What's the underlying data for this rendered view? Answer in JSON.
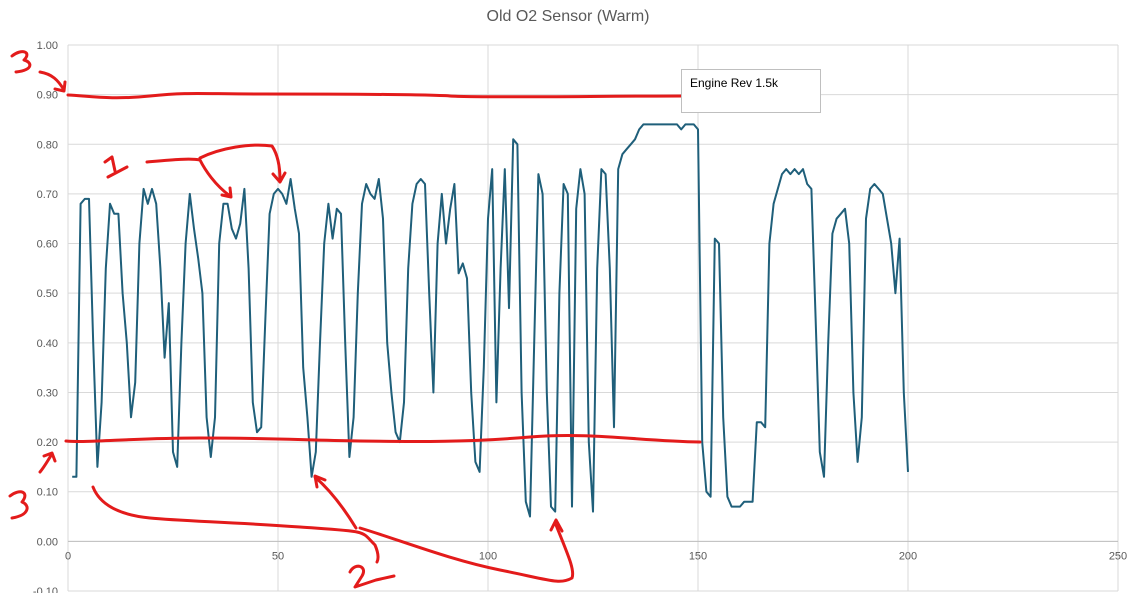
{
  "chart_data": {
    "type": "line",
    "title": "Old O2 Sensor (Warm)",
    "xlabel": "",
    "ylabel": "",
    "xlim": [
      0,
      250
    ],
    "ylim": [
      -0.1,
      1.0
    ],
    "x_ticks": [
      "0",
      "50",
      "100",
      "150",
      "200",
      "250"
    ],
    "y_ticks": [
      "-0.10",
      "0.00",
      "0.10",
      "0.20",
      "0.30",
      "0.40",
      "0.50",
      "0.60",
      "0.70",
      "0.80",
      "0.90",
      "1.00"
    ],
    "grid": true,
    "legend": "none",
    "series": [
      {
        "color": "#1f5f7a",
        "points": [
          [
            1,
            0.13
          ],
          [
            2,
            0.13
          ],
          [
            3,
            0.68
          ],
          [
            4,
            0.69
          ],
          [
            5,
            0.69
          ],
          [
            6,
            0.4
          ],
          [
            7,
            0.15
          ],
          [
            8,
            0.28
          ],
          [
            9,
            0.55
          ],
          [
            10,
            0.68
          ],
          [
            11,
            0.66
          ],
          [
            12,
            0.66
          ],
          [
            13,
            0.5
          ],
          [
            14,
            0.4
          ],
          [
            15,
            0.25
          ],
          [
            16,
            0.32
          ],
          [
            17,
            0.6
          ],
          [
            18,
            0.71
          ],
          [
            19,
            0.68
          ],
          [
            20,
            0.71
          ],
          [
            21,
            0.68
          ],
          [
            22,
            0.55
          ],
          [
            23,
            0.37
          ],
          [
            24,
            0.48
          ],
          [
            25,
            0.18
          ],
          [
            26,
            0.15
          ],
          [
            27,
            0.4
          ],
          [
            28,
            0.6
          ],
          [
            29,
            0.7
          ],
          [
            30,
            0.63
          ],
          [
            31,
            0.57
          ],
          [
            32,
            0.5
          ],
          [
            33,
            0.25
          ],
          [
            34,
            0.17
          ],
          [
            35,
            0.25
          ],
          [
            36,
            0.6
          ],
          [
            37,
            0.68
          ],
          [
            38,
            0.68
          ],
          [
            39,
            0.63
          ],
          [
            40,
            0.61
          ],
          [
            41,
            0.64
          ],
          [
            42,
            0.71
          ],
          [
            43,
            0.55
          ],
          [
            44,
            0.28
          ],
          [
            45,
            0.22
          ],
          [
            46,
            0.23
          ],
          [
            47,
            0.45
          ],
          [
            48,
            0.66
          ],
          [
            49,
            0.7
          ],
          [
            50,
            0.71
          ],
          [
            51,
            0.7
          ],
          [
            52,
            0.68
          ],
          [
            53,
            0.73
          ],
          [
            54,
            0.67
          ],
          [
            55,
            0.62
          ],
          [
            56,
            0.35
          ],
          [
            57,
            0.25
          ],
          [
            58,
            0.13
          ],
          [
            59,
            0.18
          ],
          [
            60,
            0.4
          ],
          [
            61,
            0.6
          ],
          [
            62,
            0.68
          ],
          [
            63,
            0.61
          ],
          [
            64,
            0.67
          ],
          [
            65,
            0.66
          ],
          [
            66,
            0.4
          ],
          [
            67,
            0.17
          ],
          [
            68,
            0.25
          ],
          [
            69,
            0.5
          ],
          [
            70,
            0.68
          ],
          [
            71,
            0.72
          ],
          [
            72,
            0.7
          ],
          [
            73,
            0.69
          ],
          [
            74,
            0.73
          ],
          [
            75,
            0.65
          ],
          [
            76,
            0.4
          ],
          [
            77,
            0.3
          ],
          [
            78,
            0.22
          ],
          [
            79,
            0.2
          ],
          [
            80,
            0.28
          ],
          [
            81,
            0.55
          ],
          [
            82,
            0.68
          ],
          [
            83,
            0.72
          ],
          [
            84,
            0.73
          ],
          [
            85,
            0.72
          ],
          [
            86,
            0.5
          ],
          [
            87,
            0.3
          ],
          [
            88,
            0.6
          ],
          [
            89,
            0.7
          ],
          [
            90,
            0.6
          ],
          [
            91,
            0.67
          ],
          [
            92,
            0.72
          ],
          [
            93,
            0.54
          ],
          [
            94,
            0.56
          ],
          [
            95,
            0.53
          ],
          [
            96,
            0.3
          ],
          [
            97,
            0.16
          ],
          [
            98,
            0.14
          ],
          [
            99,
            0.35
          ],
          [
            100,
            0.65
          ],
          [
            101,
            0.75
          ],
          [
            102,
            0.28
          ],
          [
            103,
            0.55
          ],
          [
            104,
            0.75
          ],
          [
            105,
            0.47
          ],
          [
            106,
            0.81
          ],
          [
            107,
            0.8
          ],
          [
            108,
            0.3
          ],
          [
            109,
            0.08
          ],
          [
            110,
            0.05
          ],
          [
            111,
            0.4
          ],
          [
            112,
            0.74
          ],
          [
            113,
            0.7
          ],
          [
            114,
            0.3
          ],
          [
            115,
            0.07
          ],
          [
            116,
            0.06
          ],
          [
            117,
            0.5
          ],
          [
            118,
            0.72
          ],
          [
            119,
            0.7
          ],
          [
            120,
            0.07
          ],
          [
            121,
            0.67
          ],
          [
            122,
            0.75
          ],
          [
            123,
            0.7
          ],
          [
            124,
            0.2
          ],
          [
            125,
            0.06
          ],
          [
            126,
            0.55
          ],
          [
            127,
            0.75
          ],
          [
            128,
            0.74
          ],
          [
            129,
            0.55
          ],
          [
            130,
            0.23
          ],
          [
            131,
            0.75
          ],
          [
            132,
            0.78
          ],
          [
            133,
            0.79
          ],
          [
            134,
            0.8
          ],
          [
            135,
            0.81
          ],
          [
            136,
            0.83
          ],
          [
            137,
            0.84
          ],
          [
            138,
            0.84
          ],
          [
            139,
            0.84
          ],
          [
            140,
            0.84
          ],
          [
            141,
            0.84
          ],
          [
            142,
            0.84
          ],
          [
            143,
            0.84
          ],
          [
            144,
            0.84
          ],
          [
            145,
            0.84
          ],
          [
            146,
            0.83
          ],
          [
            147,
            0.84
          ],
          [
            148,
            0.84
          ],
          [
            149,
            0.84
          ],
          [
            150,
            0.83
          ],
          [
            151,
            0.2
          ],
          [
            152,
            0.1
          ],
          [
            153,
            0.09
          ],
          [
            154,
            0.61
          ],
          [
            155,
            0.6
          ],
          [
            156,
            0.25
          ],
          [
            157,
            0.09
          ],
          [
            158,
            0.07
          ],
          [
            159,
            0.07
          ],
          [
            160,
            0.07
          ],
          [
            161,
            0.08
          ],
          [
            162,
            0.08
          ],
          [
            163,
            0.08
          ],
          [
            164,
            0.24
          ],
          [
            165,
            0.24
          ],
          [
            166,
            0.23
          ],
          [
            167,
            0.6
          ],
          [
            168,
            0.68
          ],
          [
            169,
            0.71
          ],
          [
            170,
            0.74
          ],
          [
            171,
            0.75
          ],
          [
            172,
            0.74
          ],
          [
            173,
            0.75
          ],
          [
            174,
            0.74
          ],
          [
            175,
            0.75
          ],
          [
            176,
            0.72
          ],
          [
            177,
            0.71
          ],
          [
            178,
            0.45
          ],
          [
            179,
            0.18
          ],
          [
            180,
            0.13
          ],
          [
            181,
            0.4
          ],
          [
            182,
            0.62
          ],
          [
            183,
            0.65
          ],
          [
            184,
            0.66
          ],
          [
            185,
            0.67
          ],
          [
            186,
            0.6
          ],
          [
            187,
            0.3
          ],
          [
            188,
            0.16
          ],
          [
            189,
            0.25
          ],
          [
            190,
            0.65
          ],
          [
            191,
            0.71
          ],
          [
            192,
            0.72
          ],
          [
            193,
            0.71
          ],
          [
            194,
            0.7
          ],
          [
            195,
            0.65
          ],
          [
            196,
            0.6
          ],
          [
            197,
            0.5
          ],
          [
            198,
            0.61
          ],
          [
            199,
            0.3
          ],
          [
            200,
            0.14
          ]
        ]
      }
    ],
    "annotations": {
      "textbox": "Engine Rev 1.5k",
      "markup_color": "#e31b1b",
      "markup_labels": [
        "3",
        "1",
        "2",
        "3"
      ]
    }
  }
}
